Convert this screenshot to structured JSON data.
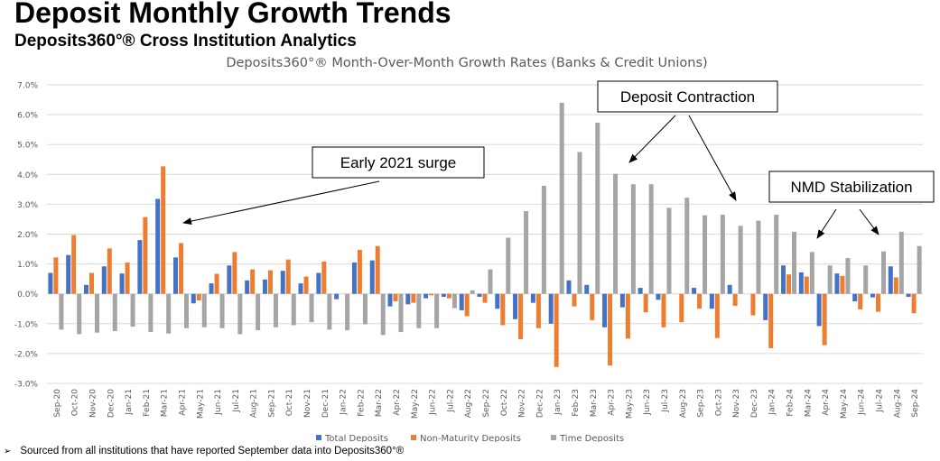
{
  "header": {
    "title": "Deposit Monthly Growth Trends",
    "subtitle": "Deposits360°® Cross Institution Analytics"
  },
  "footnote": {
    "bullet": "➢",
    "text": "Sourced from all institutions that have reported September data into Deposits360°®"
  },
  "colors": {
    "total": "#4472C4",
    "nonmaturity": "#ED7D31",
    "time": "#A5A5A5",
    "grid": "#D9D9D9",
    "axis_text": "#595959"
  },
  "chart_data": {
    "type": "bar",
    "title": "Deposits360°® Month-Over-Month Growth Rates (Banks & Credit Unions)",
    "ylim": [
      -3.0,
      7.0
    ],
    "yticks": [
      "-3.0%",
      "-2.0%",
      "-1.0%",
      "0.0%",
      "1.0%",
      "2.0%",
      "3.0%",
      "4.0%",
      "5.0%",
      "6.0%",
      "7.0%"
    ],
    "grid": true,
    "legend_position": "bottom",
    "categories": [
      "Sep-20",
      "Oct-20",
      "Nov-20",
      "Dec-20",
      "Jan-21",
      "Feb-21",
      "Mar-21",
      "Apr-21",
      "May-21",
      "Jun-21",
      "Jul-21",
      "Aug-21",
      "Sep-21",
      "Oct-21",
      "Nov-21",
      "Dec-21",
      "Jan-22",
      "Feb-22",
      "Mar-22",
      "Apr-22",
      "May-22",
      "Jun-22",
      "Jul-22",
      "Aug-22",
      "Sep-22",
      "Oct-22",
      "Nov-22",
      "Dec-22",
      "Jan-23",
      "Feb-23",
      "Mar-23",
      "Apr-23",
      "May-23",
      "Jun-23",
      "Jul-23",
      "Aug-23",
      "Sep-23",
      "Oct-23",
      "Nov-23",
      "Dec-23",
      "Jan-24",
      "Feb-24",
      "Mar-24",
      "Apr-24",
      "May-24",
      "Jun-24",
      "Jul-24",
      "Aug-24",
      "Sep-24"
    ],
    "series": [
      {
        "name": "Total Deposits",
        "values": [
          0.7,
          1.3,
          0.3,
          0.92,
          0.68,
          1.8,
          3.18,
          1.22,
          -0.32,
          0.35,
          0.95,
          0.45,
          0.48,
          0.77,
          0.35,
          0.7,
          -0.18,
          1.05,
          1.12,
          -0.42,
          -0.35,
          -0.15,
          -0.1,
          -0.55,
          -0.1,
          -0.5,
          -0.85,
          -0.3,
          -1.0,
          0.45,
          0.3,
          -1.12,
          -0.45,
          0.2,
          -0.2,
          0.0,
          0.2,
          -0.5,
          0.3,
          0.0,
          -0.88,
          0.95,
          0.72,
          -1.08,
          0.68,
          -0.25,
          -0.12,
          0.92,
          -0.1
        ]
      },
      {
        "name": "Non-Maturity Deposits",
        "values": [
          1.22,
          1.97,
          0.7,
          1.52,
          1.05,
          2.57,
          4.27,
          1.7,
          -0.22,
          0.67,
          1.4,
          0.82,
          0.79,
          1.15,
          0.58,
          1.08,
          0.0,
          1.47,
          1.6,
          -0.25,
          -0.3,
          -0.05,
          -0.15,
          -0.75,
          -0.3,
          -1.05,
          -1.52,
          -1.15,
          -2.45,
          -0.42,
          -0.88,
          -2.4,
          -1.5,
          -0.62,
          -1.12,
          -0.95,
          -0.5,
          -1.48,
          -0.4,
          -0.72,
          -1.82,
          0.65,
          0.58,
          -1.72,
          0.6,
          -0.52,
          -0.6,
          0.55,
          -0.65
        ]
      },
      {
        "name": "Time Deposits",
        "values": [
          -1.2,
          -1.35,
          -1.3,
          -1.25,
          -1.1,
          -1.28,
          -1.33,
          -1.15,
          -1.12,
          -1.15,
          -1.35,
          -1.22,
          -1.12,
          -1.05,
          -0.95,
          -1.2,
          -1.22,
          -1.02,
          -1.38,
          -1.28,
          -1.15,
          -1.15,
          -0.48,
          0.12,
          0.82,
          1.88,
          2.77,
          3.62,
          6.4,
          4.75,
          5.73,
          4.02,
          3.67,
          3.67,
          2.88,
          3.22,
          2.63,
          2.65,
          2.28,
          2.45,
          2.65,
          2.08,
          1.4,
          0.95,
          1.2,
          0.95,
          1.42,
          2.08,
          1.6
        ]
      }
    ],
    "annotations": [
      {
        "id": "early-2021-surge",
        "text": "Early 2021 surge"
      },
      {
        "id": "deposit-contraction",
        "text": "Deposit Contraction"
      },
      {
        "id": "nmd-stabilization",
        "text": "NMD Stabilization"
      }
    ]
  }
}
